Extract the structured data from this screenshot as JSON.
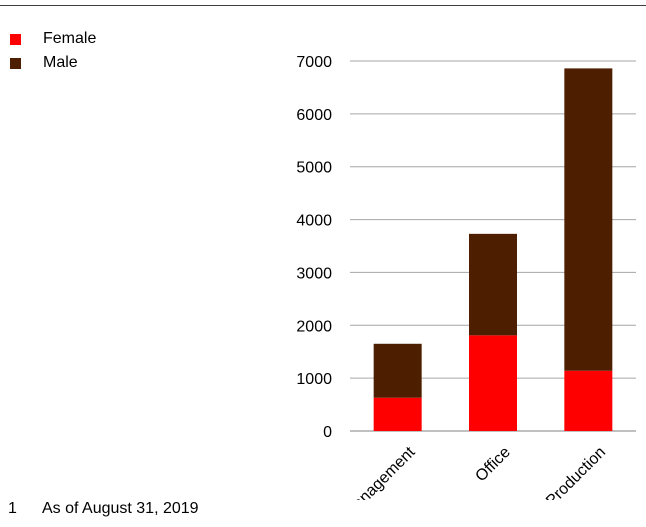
{
  "chart_data": {
    "type": "bar",
    "stacked": true,
    "categories": [
      "Management",
      "Office",
      "Production"
    ],
    "series": [
      {
        "name": "Female",
        "values": [
          630,
          1810,
          1140
        ],
        "color": "#ff0000"
      },
      {
        "name": "Male",
        "values": [
          1020,
          1920,
          5720
        ],
        "color": "#4d1f00"
      }
    ],
    "y_ticks": [
      "0",
      "1000",
      "2000",
      "3000",
      "4000",
      "5000",
      "6000",
      "7000"
    ],
    "ylim": [
      0,
      7000
    ],
    "grid": true,
    "legend_position": "top-left"
  },
  "footnote": {
    "number": "1",
    "text": "As of August 31, 2019"
  }
}
